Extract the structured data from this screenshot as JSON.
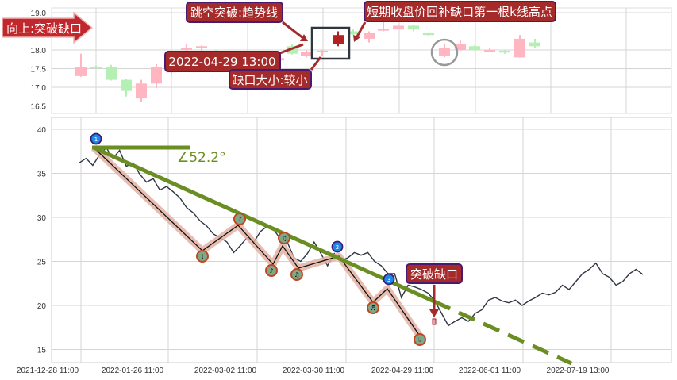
{
  "colors": {
    "up": "#ffb6c1",
    "down": "#b4f0b4",
    "highlight": "#b22222",
    "trend": "#6b8e23",
    "price_line": "#2f3542",
    "wave_halo": "#e3b1a4",
    "label_bg": "#a52a2a",
    "label_border": "#4b1a6e"
  },
  "top_panel": {
    "y_ticks": [
      "19.0",
      "18.0",
      "17.5",
      "17.0",
      "16.5"
    ],
    "candles": [
      {
        "o": 17.3,
        "c": 17.55,
        "h": 17.9,
        "l": 17.28,
        "dir": "up"
      },
      {
        "o": 17.55,
        "c": 17.52,
        "h": 17.58,
        "l": 17.5,
        "dir": "down"
      },
      {
        "o": 17.55,
        "c": 17.2,
        "h": 17.6,
        "l": 17.18,
        "dir": "down"
      },
      {
        "o": 17.2,
        "c": 16.9,
        "h": 17.22,
        "l": 16.75,
        "dir": "down"
      },
      {
        "o": 16.7,
        "c": 17.1,
        "h": 17.2,
        "l": 16.6,
        "dir": "up"
      },
      {
        "o": 17.1,
        "c": 17.55,
        "h": 17.62,
        "l": 16.98,
        "dir": "up"
      },
      {
        "o": 17.4,
        "c": 17.6,
        "h": 17.7,
        "l": 17.35,
        "dir": "up"
      },
      {
        "o": 18.0,
        "c": 18.05,
        "h": 18.15,
        "l": 17.95,
        "dir": "up"
      },
      {
        "o": 18.05,
        "c": 18.1,
        "h": 18.12,
        "l": 17.98,
        "dir": "up"
      },
      {
        "o": 17.97,
        "c": 17.94,
        "h": 17.99,
        "l": 17.92,
        "dir": "down"
      },
      {
        "o": 17.72,
        "c": 17.78,
        "h": 17.82,
        "l": 17.7,
        "dir": "up"
      },
      {
        "o": 18.1,
        "c": 17.9,
        "h": 18.15,
        "l": 17.88,
        "dir": "down"
      },
      {
        "o": 17.85,
        "c": 17.95,
        "h": 18.0,
        "l": 17.8,
        "dir": "up"
      },
      {
        "o": 17.96,
        "c": 17.98,
        "h": 18.0,
        "l": 17.85,
        "dir": "up"
      },
      {
        "o": 18.15,
        "c": 18.4,
        "h": 18.5,
        "l": 18.1,
        "dir": "highlight"
      },
      {
        "o": 18.5,
        "c": 18.42,
        "h": 18.55,
        "l": 18.4,
        "dir": "down"
      },
      {
        "o": 18.3,
        "c": 18.45,
        "h": 18.5,
        "l": 18.2,
        "dir": "up"
      },
      {
        "o": 18.52,
        "c": 18.56,
        "h": 18.8,
        "l": 18.5,
        "dir": "up"
      },
      {
        "o": 18.55,
        "c": 18.65,
        "h": 18.68,
        "l": 18.55,
        "dir": "up"
      },
      {
        "o": 18.65,
        "c": 18.55,
        "h": 18.68,
        "l": 18.5,
        "dir": "down"
      },
      {
        "o": 18.45,
        "c": 18.4,
        "h": 18.47,
        "l": 18.38,
        "dir": "down"
      },
      {
        "o": 17.85,
        "c": 18.05,
        "h": 18.15,
        "l": 17.8,
        "dir": "up"
      },
      {
        "o": 18.0,
        "c": 18.15,
        "h": 18.25,
        "l": 17.98,
        "dir": "up"
      },
      {
        "o": 18.1,
        "c": 18.0,
        "h": 18.12,
        "l": 17.98,
        "dir": "down"
      },
      {
        "o": 17.98,
        "c": 18.0,
        "h": 18.06,
        "l": 17.95,
        "dir": "up"
      },
      {
        "o": 17.98,
        "c": 17.93,
        "h": 18.0,
        "l": 17.9,
        "dir": "down"
      },
      {
        "o": 17.8,
        "c": 18.3,
        "h": 18.4,
        "l": 17.8,
        "dir": "up"
      },
      {
        "o": 18.2,
        "c": 18.1,
        "h": 18.3,
        "l": 18.05,
        "dir": "down"
      }
    ],
    "labels": {
      "breakout_direction": "向上:突破缺口",
      "gap_breaks_trendline": "跳空突破:趋势线",
      "gap_fill_note": "短期收盘价回补缺口第一根k线高点",
      "gap_datetime": "2022-04-29 13:00",
      "gap_size": "缺口大小:较小"
    }
  },
  "main_panel": {
    "y_ticks": [
      "40",
      "35",
      "30",
      "25",
      "20",
      "15"
    ],
    "x_ticks": [
      "2021-12-28 11:00",
      "2022-01-26 11:00",
      "2022-03-02 11:00",
      "2022-03-30 11:00",
      "2022-04-29 11:00",
      "2022-06-01 11:00",
      "2022-07-19 13:00"
    ],
    "price_series": [
      36.2,
      36.7,
      35.9,
      37.1,
      37.9,
      36.7,
      37.6,
      35.8,
      36.2,
      34.9,
      34.0,
      34.4,
      33.1,
      33.5,
      32.9,
      32.2,
      31.1,
      30.5,
      29.6,
      29.0,
      28.1,
      27.7,
      27.2,
      26.0,
      26.8,
      27.7,
      27.2,
      28.4,
      29.0,
      28.6,
      27.5,
      27.2,
      25.4,
      25.0,
      25.9,
      27.2,
      25.9,
      24.5,
      25.9,
      25.1,
      25.4,
      26.0,
      25.7,
      26.0,
      25.0,
      24.5,
      23.6,
      23.6,
      20.9,
      22.3,
      22.1,
      21.8,
      21.4,
      20.5,
      19.1,
      17.7,
      18.2,
      18.6,
      18.2,
      19.1,
      19.5,
      20.6,
      20.9,
      20.5,
      20.3,
      20.6,
      20.0,
      20.5,
      20.9,
      21.4,
      21.2,
      21.5,
      22.3,
      21.8,
      22.7,
      23.6,
      24.1,
      24.8,
      23.6,
      23.2,
      22.3,
      22.7,
      23.6,
      24.1,
      23.5
    ],
    "angle_label": "∠52.2°",
    "pivot_labels": [
      "1",
      "2",
      "3"
    ],
    "wave_marks": [
      "♩",
      "♪",
      "♪",
      "♫",
      "♫",
      "♬",
      "♭"
    ],
    "breakout_label": "突破缺口"
  }
}
